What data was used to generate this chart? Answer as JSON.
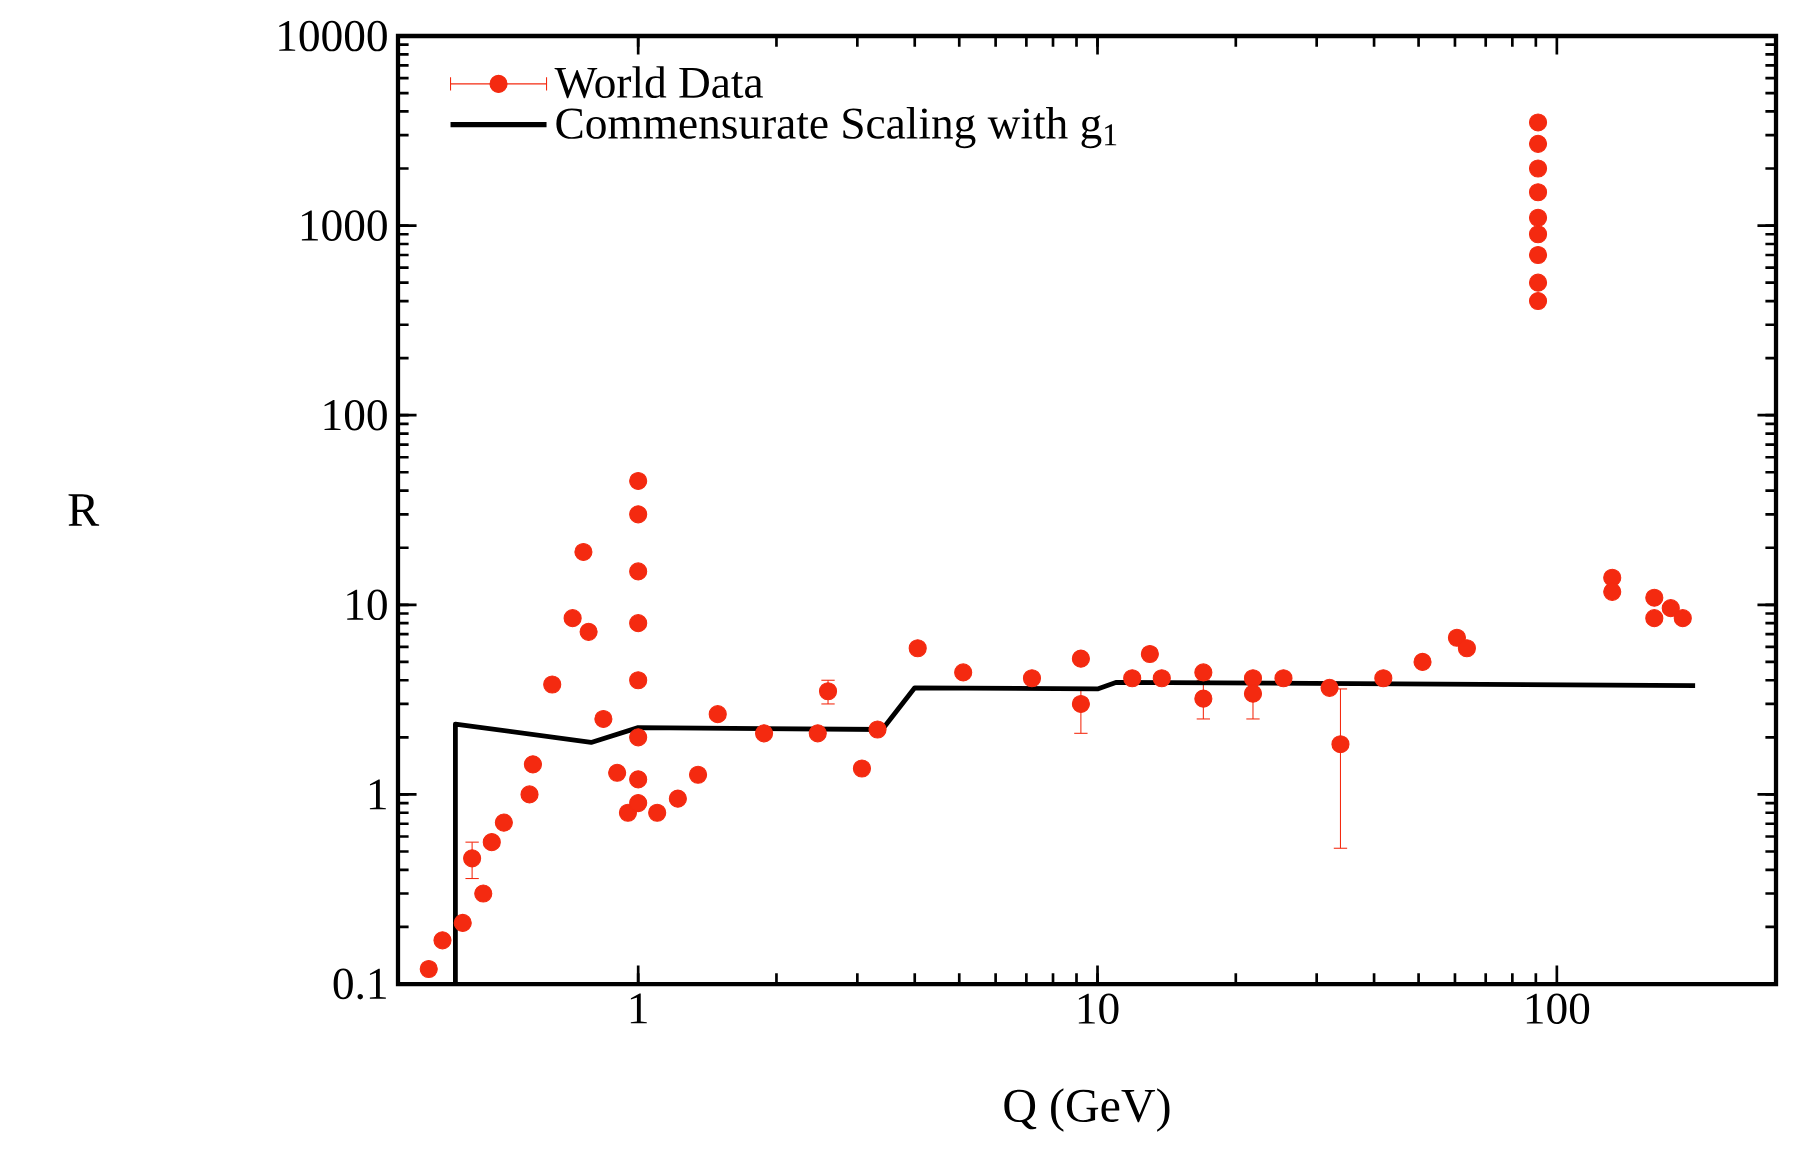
{
  "chart_data": {
    "type": "scatter",
    "xlabel": "Q (GeV)",
    "ylabel": "R",
    "log": "xy",
    "legend": "top left",
    "xlim": [
      0.3,
      300
    ],
    "ylim": [
      0.1,
      10000
    ],
    "xticks": [
      1,
      10,
      100
    ],
    "yticks": [
      0.1,
      1,
      10,
      100,
      1000,
      10000
    ],
    "series": [
      {
        "name": "World Data",
        "marker": "circle",
        "color": "#f42a10",
        "x": [
          0.35,
          0.375,
          0.415,
          0.435,
          0.46,
          0.48,
          0.51,
          0.58,
          0.59,
          0.65,
          0.72,
          0.76,
          0.78,
          0.84,
          0.9,
          0.95,
          1,
          1,
          1,
          1,
          1,
          1,
          1,
          1,
          1.1,
          1.22,
          1.35,
          1.49,
          1.88,
          2.46,
          2.59,
          3.07,
          3.32,
          4.06,
          5.1,
          7.2,
          9.2,
          9.2,
          11.9,
          13,
          13.8,
          17,
          17,
          21.8,
          21.8,
          25.4,
          32,
          33.8,
          41.9,
          51,
          60.6,
          63.7,
          91,
          91,
          91,
          91,
          91,
          91,
          91,
          91,
          91,
          132,
          132,
          163,
          163,
          177,
          188
        ],
        "values": [
          0.12,
          0.17,
          0.21,
          0.46,
          0.3,
          0.56,
          0.71,
          1.0,
          1.44,
          3.8,
          8.5,
          19,
          7.2,
          2.5,
          1.3,
          0.8,
          45,
          30,
          15,
          8,
          4,
          2,
          1.2,
          0.9,
          0.8,
          0.95,
          1.27,
          2.65,
          2.1,
          2.1,
          3.5,
          1.37,
          2.2,
          5.9,
          4.4,
          4.1,
          5.2,
          3.0,
          4.1,
          5.5,
          4.1,
          4.4,
          3.2,
          4.1,
          3.4,
          4.1,
          3.65,
          1.84,
          4.1,
          5.0,
          6.7,
          5.9,
          3500,
          2700,
          2000,
          1500,
          1100,
          900,
          700,
          500,
          400,
          13.9,
          11.7,
          10.9,
          8.5,
          9.6,
          8.5
        ],
        "errors": [
          null,
          null,
          null,
          [
            0.36,
            0.56
          ],
          null,
          null,
          null,
          null,
          null,
          null,
          null,
          null,
          null,
          null,
          null,
          null,
          null,
          null,
          null,
          null,
          null,
          null,
          null,
          null,
          null,
          null,
          null,
          null,
          null,
          null,
          [
            3.0,
            4.0
          ],
          null,
          null,
          null,
          null,
          null,
          null,
          [
            2.1,
            3.6
          ],
          null,
          null,
          null,
          null,
          [
            2.5,
            4.0
          ],
          null,
          [
            2.5,
            4.1
          ],
          null,
          null,
          [
            0.52,
            3.6
          ],
          null,
          null,
          null,
          null,
          null,
          null,
          null,
          null,
          null,
          null,
          null,
          null,
          null,
          null,
          null,
          null,
          null,
          null,
          null
        ]
      },
      {
        "name": "Commensurate Scaling with g$_{1}$",
        "type": "line",
        "color": "#000000",
        "x": [
          0.4,
          0.4,
          0.79,
          1,
          3.4,
          4.0,
          10,
          11,
          200
        ],
        "values": [
          0.1,
          2.35,
          1.88,
          2.25,
          2.2,
          3.65,
          3.6,
          3.9,
          3.75
        ]
      }
    ]
  }
}
